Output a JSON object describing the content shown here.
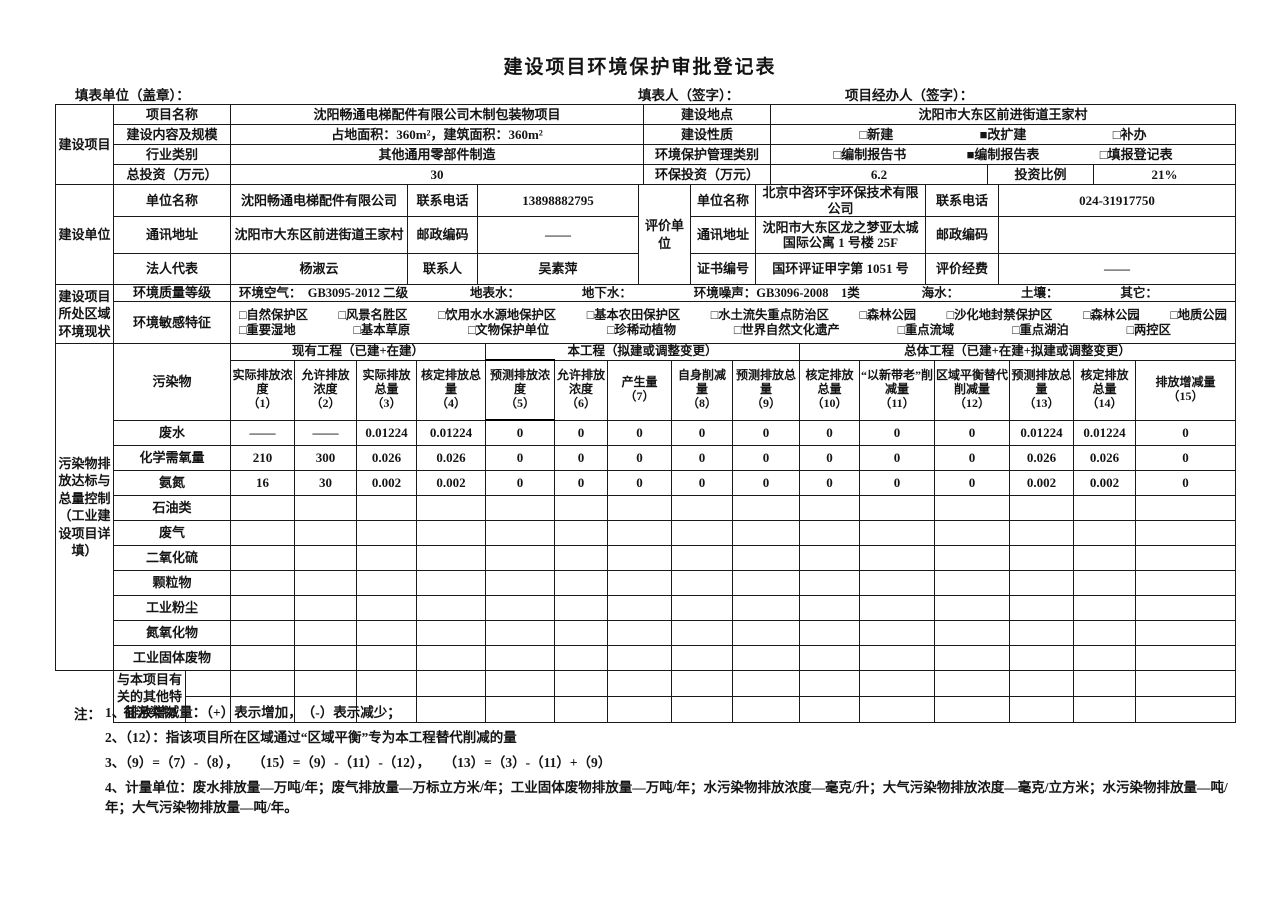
{
  "title": "建设项目环境保护审批登记表",
  "signatures": {
    "unit": "填表单位（盖章）：",
    "person": "填表人（签字）：",
    "agent": "项目经办人（签字）："
  },
  "project": {
    "section_label": "建设项目",
    "name_label": "项目名称",
    "name_value": "沈阳畅通电梯配件有限公司木制包装物项目",
    "location_label": "建设地点",
    "location_value": "沈阳市大东区前进街道王家村",
    "content_label": "建设内容及规模",
    "content_value": "占地面积：360m²，建筑面积：360m²",
    "nature_label": "建设性质",
    "nature_options": [
      "□新建",
      "■改扩建",
      "□补办"
    ],
    "industry_label": "行业类别",
    "industry_value": "其他通用零部件制造",
    "mgmt_label": "环境保护管理类别",
    "mgmt_options": [
      "□编制报告书",
      "■编制报告表",
      "□填报登记表"
    ],
    "invest_label": "总投资（万元）",
    "invest_value": "30",
    "env_invest_label": "环保投资（万元）",
    "env_invest_value": "6.2",
    "ratio_label": "投资比例",
    "ratio_value": "21%"
  },
  "builder": {
    "section_label": "建设单位",
    "rows": [
      {
        "l1": "单位名称",
        "v1": "沈阳畅通电梯配件有限公司",
        "l2": "联系电话",
        "v2": "13898882795"
      },
      {
        "l1": "通讯地址",
        "v1": "沈阳市大东区前进街道王家村",
        "l2": "邮政编码",
        "v2": "——"
      },
      {
        "l1": "法人代表",
        "v1": "杨淑云",
        "l2": "联系人",
        "v2": "吴素萍"
      }
    ]
  },
  "evaluator": {
    "section_label": "评价单位",
    "rows": [
      {
        "l1": "单位名称",
        "v1": "北京中咨环宇环保技术有限公司",
        "l2": "联系电话",
        "v2": "024-31917750"
      },
      {
        "l1": "通讯地址",
        "v1": "沈阳市大东区龙之梦亚太城国际公寓 1 号楼 25F",
        "l2": "邮政编码",
        "v2": ""
      },
      {
        "l1": "证书编号",
        "v1": "国环评证甲字第 1051 号",
        "l2": "评价经费",
        "v2": "——"
      }
    ]
  },
  "environment": {
    "section_label": "建设项目所处区域环境现状",
    "quality_label": "环境质量等级",
    "quality_segments": [
      "环境空气：　GB3095-2012 二级",
      "地表水：",
      "地下水：",
      "环境噪声：GB3096-2008　1类",
      "海水：",
      "土壤：",
      "其它："
    ],
    "sensitive_label": "环境敏感特征",
    "sensitive_line1": [
      "□自然保护区",
      "□风景名胜区",
      "□饮用水水源地保护区",
      "□基本农田保护区",
      "□水土流失重点防治区",
      "□森林公园",
      "□沙化地封禁保护区",
      "□森林公园",
      "□地质公园"
    ],
    "sensitive_line2": [
      "□重要湿地",
      "□基本草原",
      "□文物保护单位",
      "□珍稀动植物",
      "□世界自然文化遗产",
      "□重点流域",
      "□重点湖泊",
      "□两控区"
    ]
  },
  "pollutants": {
    "section_label": "污染物排放达标与总量控制（工业建设项目详填）",
    "pollutant_col": "污染物",
    "groups": [
      {
        "label": "现有工程（已建+在建）",
        "span": 4
      },
      {
        "label": "本工程（拟建或调整变更）",
        "span": 5
      },
      {
        "label": "总体工程（已建+在建+拟建或调整变更）",
        "span": 6
      }
    ],
    "columns": [
      {
        "label": "实际排放浓度",
        "num": "（1）"
      },
      {
        "label": "允许排放浓度",
        "num": "（2）"
      },
      {
        "label": "实际排放总量",
        "num": "（3）"
      },
      {
        "label": "核定排放总量",
        "num": "（4）"
      },
      {
        "label": "预测排放浓度",
        "num": "（5）"
      },
      {
        "label": "允许排放浓度",
        "num": "（6）"
      },
      {
        "label": "产生量",
        "num": "（7）"
      },
      {
        "label": "自身削减量",
        "num": "（8）"
      },
      {
        "label": "预测排放总量",
        "num": "（9）"
      },
      {
        "label": "核定排放总量",
        "num": "（10）"
      },
      {
        "label": "“以新带老”削减量",
        "num": "（11）"
      },
      {
        "label": "区域平衡替代削减量",
        "num": "（12）"
      },
      {
        "label": "预测排放总量",
        "num": "（13）"
      },
      {
        "label": "核定排放总量",
        "num": "（14）"
      },
      {
        "label": "排放增减量",
        "num": "（15）"
      }
    ],
    "rows": [
      {
        "name": "废水",
        "values": [
          "——",
          "——",
          "0.01224",
          "0.01224",
          "0",
          "0",
          "0",
          "0",
          "0",
          "0",
          "0",
          "0",
          "0.01224",
          "0.01224",
          "0"
        ]
      },
      {
        "name": "化学需氧量",
        "values": [
          "210",
          "300",
          "0.026",
          "0.026",
          "0",
          "0",
          "0",
          "0",
          "0",
          "0",
          "0",
          "0",
          "0.026",
          "0.026",
          "0"
        ]
      },
      {
        "name": "氨氮",
        "values": [
          "16",
          "30",
          "0.002",
          "0.002",
          "0",
          "0",
          "0",
          "0",
          "0",
          "0",
          "0",
          "0",
          "0.002",
          "0.002",
          "0"
        ]
      },
      {
        "name": "石油类",
        "values": [
          "",
          "",
          "",
          "",
          "",
          "",
          "",
          "",
          "",
          "",
          "",
          "",
          "",
          "",
          ""
        ]
      },
      {
        "name": "废气",
        "values": [
          "",
          "",
          "",
          "",
          "",
          "",
          "",
          "",
          "",
          "",
          "",
          "",
          "",
          "",
          ""
        ]
      },
      {
        "name": "二氧化硫",
        "values": [
          "",
          "",
          "",
          "",
          "",
          "",
          "",
          "",
          "",
          "",
          "",
          "",
          "",
          "",
          ""
        ]
      },
      {
        "name": "颗粒物",
        "values": [
          "",
          "",
          "",
          "",
          "",
          "",
          "",
          "",
          "",
          "",
          "",
          "",
          "",
          "",
          ""
        ]
      },
      {
        "name": "工业粉尘",
        "values": [
          "",
          "",
          "",
          "",
          "",
          "",
          "",
          "",
          "",
          "",
          "",
          "",
          "",
          "",
          ""
        ]
      },
      {
        "name": "氮氧化物",
        "values": [
          "",
          "",
          "",
          "",
          "",
          "",
          "",
          "",
          "",
          "",
          "",
          "",
          "",
          "",
          ""
        ]
      },
      {
        "name": "工业固体废物",
        "values": [
          "",
          "",
          "",
          "",
          "",
          "",
          "",
          "",
          "",
          "",
          "",
          "",
          "",
          "",
          ""
        ]
      }
    ],
    "other_label": "与本项目有关的其他特征污染物"
  },
  "notes": {
    "prefix": "注：",
    "items": [
      "1、排放增减量：（+）表示增加，　（-）表示减少；",
      "2、（12）：指该项目所在区域通过“区域平衡”专为本工程替代削减的量",
      "3、（9）=（7）-（8），　　（15）=（9）-（11）-（12），　　（13）=（3）-（11）+（9）",
      "4、计量单位：废水排放量—万吨/年；废气排放量—万标立方米/年；工业固体废物排放量—万吨/年；水污染物排放浓度—毫克/升；大气污染物排放浓度—毫克/立方米；水污染物排放量—吨/年；大气污染物排放量—吨/年。"
    ]
  }
}
